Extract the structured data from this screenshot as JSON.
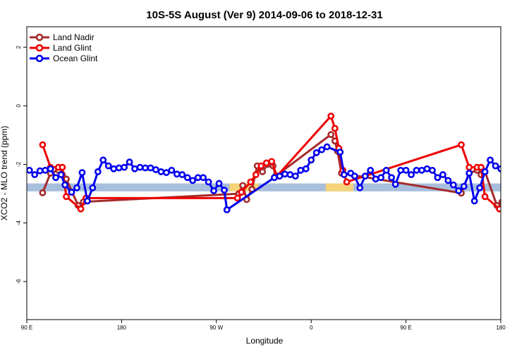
{
  "chart_data": {
    "type": "line",
    "title": "10S-5S August (Ver 9)   2014-09-06 to 2018-12-31",
    "xlabel": "Longitude",
    "ylabel": "XCO2 - MLO trend (ppm)",
    "xlim": [
      90,
      450
    ],
    "ylim": [
      -7.3,
      2.7
    ],
    "x_ticks": [
      {
        "value": 90,
        "label": "90 E"
      },
      {
        "value": 162,
        "label": "180"
      },
      {
        "value": 234,
        "label": "90 W"
      },
      {
        "value": 306,
        "label": "0"
      },
      {
        "value": 378,
        "label": "90 E"
      },
      {
        "value": 450,
        "label": "180"
      }
    ],
    "y_ticks": [
      {
        "value": 2,
        "label": "2"
      },
      {
        "value": 0,
        "label": "0"
      },
      {
        "value": -2,
        "label": "-2"
      },
      {
        "value": -4,
        "label": "-4"
      },
      {
        "value": -6,
        "label": "-6"
      }
    ],
    "legend": {
      "position": "top-left"
    },
    "surface_band": {
      "y_top": -2.65,
      "y_bottom": -2.92,
      "ocean_color": "#a7bedd",
      "land_color": "#f6d379",
      "land_segments": [
        [
          244,
          266
        ],
        [
          317,
          338
        ]
      ]
    },
    "series": [
      {
        "name": "Land Nadir",
        "color": "#a52a2a",
        "points": [
          [
            102,
            -2.97
          ],
          [
            108,
            -2.3
          ],
          [
            114,
            -2.2
          ],
          [
            117,
            -2.35
          ],
          [
            120,
            -2.5
          ],
          [
            129,
            -3.4
          ],
          [
            133,
            -3.28
          ],
          [
            251,
            -3.0
          ],
          [
            254,
            -2.72
          ],
          [
            257,
            -3.2
          ],
          [
            261,
            -2.85
          ],
          [
            265,
            -2.05
          ],
          [
            269,
            -2.25
          ],
          [
            273,
            -2.0
          ],
          [
            277,
            -2.05
          ],
          [
            279,
            -2.4
          ],
          [
            321,
            -0.98
          ],
          [
            324,
            -1.2
          ],
          [
            326,
            -1.55
          ],
          [
            329,
            -2.3
          ],
          [
            420,
            -2.98
          ],
          [
            426,
            -2.3
          ],
          [
            432,
            -2.2
          ],
          [
            435,
            -2.35
          ],
          [
            438,
            -2.25
          ],
          [
            447,
            -3.4
          ],
          [
            451,
            -3.28
          ]
        ]
      },
      {
        "name": "Land Glint",
        "color": "#ee0000",
        "points": [
          [
            102,
            -1.33
          ],
          [
            108,
            -2.1
          ],
          [
            114,
            -2.1
          ],
          [
            117,
            -2.1
          ],
          [
            120,
            -3.1
          ],
          [
            131,
            -3.52
          ],
          [
            135,
            -3.15
          ],
          [
            250,
            -3.15
          ],
          [
            253,
            -2.95
          ],
          [
            260,
            -2.6
          ],
          [
            264,
            -2.35
          ],
          [
            268,
            -2.05
          ],
          [
            272,
            -1.95
          ],
          [
            276,
            -1.9
          ],
          [
            280,
            -2.4
          ],
          [
            321,
            -0.35
          ],
          [
            324,
            -0.77
          ],
          [
            327,
            -1.45
          ],
          [
            330,
            -2.2
          ],
          [
            333,
            -2.6
          ],
          [
            420,
            -1.33
          ],
          [
            426,
            -2.1
          ],
          [
            432,
            -2.1
          ],
          [
            435,
            -2.1
          ],
          [
            438,
            -3.1
          ],
          [
            449,
            -3.52
          ],
          [
            453,
            -3.15
          ]
        ]
      },
      {
        "name": "Ocean Glint",
        "color": "#0000ee",
        "points": [
          [
            92,
            -2.2
          ],
          [
            96,
            -2.35
          ],
          [
            100,
            -2.22
          ],
          [
            104,
            -2.2
          ],
          [
            108,
            -2.15
          ],
          [
            112,
            -2.45
          ],
          [
            116,
            -2.35
          ],
          [
            119,
            -2.7
          ],
          [
            124,
            -2.95
          ],
          [
            128,
            -2.8
          ],
          [
            132,
            -2.28
          ],
          [
            136,
            -3.25
          ],
          [
            140,
            -2.8
          ],
          [
            144,
            -2.25
          ],
          [
            148,
            -1.85
          ],
          [
            152,
            -2.05
          ],
          [
            156,
            -2.15
          ],
          [
            160,
            -2.12
          ],
          [
            164,
            -2.1
          ],
          [
            168,
            -1.92
          ],
          [
            172,
            -2.15
          ],
          [
            176,
            -2.1
          ],
          [
            180,
            -2.12
          ],
          [
            184,
            -2.12
          ],
          [
            188,
            -2.18
          ],
          [
            192,
            -2.25
          ],
          [
            196,
            -2.28
          ],
          [
            200,
            -2.2
          ],
          [
            204,
            -2.33
          ],
          [
            208,
            -2.35
          ],
          [
            212,
            -2.45
          ],
          [
            216,
            -2.55
          ],
          [
            220,
            -2.45
          ],
          [
            224,
            -2.45
          ],
          [
            228,
            -2.6
          ],
          [
            232,
            -2.9
          ],
          [
            236,
            -2.65
          ],
          [
            240,
            -2.88
          ],
          [
            242,
            -3.55
          ],
          [
            278,
            -2.45
          ],
          [
            282,
            -2.4
          ],
          [
            286,
            -2.33
          ],
          [
            290,
            -2.35
          ],
          [
            294,
            -2.4
          ],
          [
            298,
            -2.2
          ],
          [
            302,
            -2.15
          ],
          [
            306,
            -1.85
          ],
          [
            310,
            -1.6
          ],
          [
            314,
            -1.5
          ],
          [
            318,
            -1.4
          ],
          [
            328,
            -1.58
          ],
          [
            331,
            -2.35
          ],
          [
            336,
            -2.3
          ],
          [
            339,
            -2.4
          ],
          [
            343,
            -2.8
          ],
          [
            347,
            -2.4
          ],
          [
            351,
            -2.2
          ],
          [
            355,
            -2.5
          ],
          [
            359,
            -2.45
          ],
          [
            363,
            -2.2
          ],
          [
            367,
            -2.45
          ],
          [
            370,
            -2.68
          ],
          [
            374,
            -2.2
          ],
          [
            378,
            -2.2
          ],
          [
            382,
            -2.35
          ],
          [
            386,
            -2.2
          ],
          [
            390,
            -2.2
          ],
          [
            394,
            -2.15
          ],
          [
            398,
            -2.2
          ],
          [
            402,
            -2.45
          ],
          [
            406,
            -2.35
          ],
          [
            410,
            -2.55
          ],
          [
            414,
            -2.7
          ],
          [
            418,
            -2.9
          ],
          [
            422,
            -2.75
          ],
          [
            426,
            -2.3
          ],
          [
            430,
            -3.25
          ],
          [
            434,
            -2.8
          ],
          [
            438,
            -2.25
          ],
          [
            442,
            -1.85
          ],
          [
            446,
            -2.05
          ],
          [
            450,
            -2.15
          ]
        ]
      }
    ]
  }
}
